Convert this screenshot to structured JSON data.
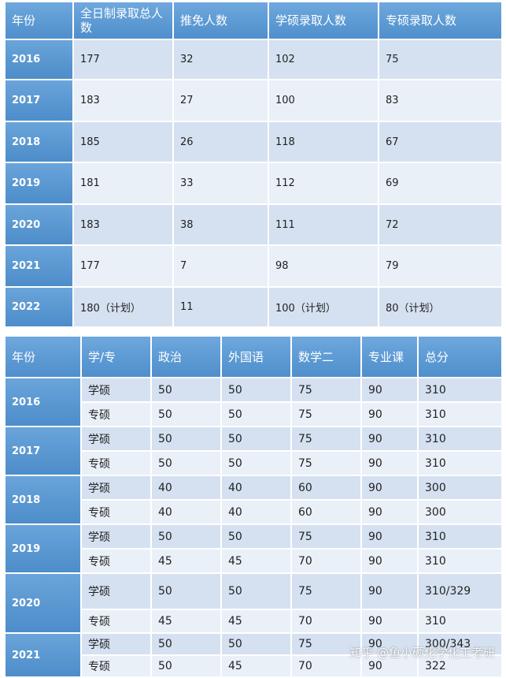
{
  "table1": {
    "headers": [
      "年份",
      "全日制录取总人数",
      "推免人数",
      "学硕录取人数",
      "专硕录取人数"
    ],
    "rows": [
      [
        "2016",
        "177",
        "32",
        "102",
        "75"
      ],
      [
        "2017",
        "183",
        "27",
        "100",
        "83"
      ],
      [
        "2018",
        "185",
        "26",
        "118",
        "67"
      ],
      [
        "2019",
        "181",
        "33",
        "112",
        "69"
      ],
      [
        "2020",
        "183",
        "38",
        "111",
        "72"
      ],
      [
        "2021",
        "177",
        "7",
        "98",
        "79"
      ],
      [
        "2022",
        "180（计划）",
        "11",
        "100（计划）",
        "80（计划）"
      ]
    ]
  },
  "table2": {
    "headers": [
      "年份",
      "学/专",
      "政治",
      "外国语",
      "数学二",
      "专业课",
      "总分"
    ],
    "years": [
      {
        "year": "2016",
        "rows": [
          [
            "学硕",
            "50",
            "50",
            "75",
            "90",
            "310"
          ],
          [
            "专硕",
            "50",
            "50",
            "75",
            "90",
            "310"
          ]
        ]
      },
      {
        "year": "2017",
        "rows": [
          [
            "学硕",
            "50",
            "50",
            "75",
            "90",
            "310"
          ],
          [
            "专硕",
            "50",
            "50",
            "75",
            "90",
            "310"
          ]
        ]
      },
      {
        "year": "2018",
        "rows": [
          [
            "学硕",
            "40",
            "40",
            "60",
            "90",
            "300"
          ],
          [
            "专硕",
            "40",
            "40",
            "60",
            "90",
            "300"
          ]
        ]
      },
      {
        "year": "2019",
        "rows": [
          [
            "学硕",
            "50",
            "50",
            "75",
            "90",
            "310"
          ],
          [
            "专硕",
            "45",
            "45",
            "70",
            "90",
            "310"
          ]
        ]
      },
      {
        "year": "2020",
        "rows": [
          [
            "学硕",
            "50",
            "50",
            "75",
            "90",
            "310/329"
          ],
          [
            "专硕",
            "45",
            "45",
            "70",
            "90",
            "310"
          ]
        ]
      },
      {
        "year": "2021",
        "rows": [
          [
            "学硕",
            "50",
            "50",
            "75",
            "90",
            "300/343"
          ],
          [
            "专硕",
            "50",
            "45",
            "70",
            "90",
            "322"
          ]
        ]
      }
    ]
  },
  "watermark": "知乎 @鱼小硕化学化工考研"
}
